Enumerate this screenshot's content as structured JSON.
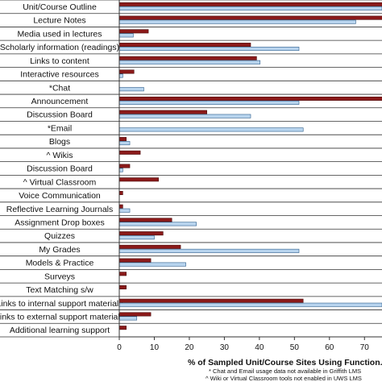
{
  "chart_data": {
    "type": "bar",
    "orientation": "horizontal",
    "categories": [
      "Unit/Course Outline",
      "Lecture Notes",
      "Media used in lectures",
      "Scholarly information  (readings)",
      "Links to content",
      "Interactive resources",
      "*Chat",
      "Announcement",
      "Discussion Board",
      "*Email",
      "Blogs",
      "^ Wikis",
      "Discussion Board",
      "^ Virtual Classroom",
      "Voice Communication",
      "Reflective Learning Journals",
      "Assignment Drop boxes",
      "Quizzes",
      "My Grades",
      "Models & Practice",
      "Surveys",
      "Text Matching s/w",
      "Links to internal support materials",
      "Links to external support materials",
      "Additional learning support"
    ],
    "series": [
      {
        "color": "#8b1a1a",
        "values": [
          76,
          76,
          8.3,
          37.5,
          39.2,
          4.2,
          0,
          76,
          25,
          0,
          2,
          6,
          3,
          11.2,
          1,
          1,
          15,
          12.5,
          17.5,
          9,
          2,
          2,
          52.5,
          9,
          2
        ]
      },
      {
        "color": "#b8d4ee",
        "values": [
          75,
          67.5,
          4,
          51.3,
          40.2,
          1,
          7,
          51.3,
          37.5,
          52.5,
          3,
          0,
          1,
          0,
          0,
          3,
          22,
          10,
          51.3,
          19,
          0,
          0,
          75,
          5,
          0
        ]
      }
    ],
    "xlim": [
      0,
      75
    ],
    "xticks": [
      "0",
      "10",
      "20",
      "30",
      "40",
      "50",
      "60",
      "70"
    ],
    "xlabel": "% of Sampled Unit/Course Sites Using Function.",
    "annotations": [
      "* Chat and Email usage data not available in Griffith LMS",
      "^ Wiki or Virtual Classroom tools not enabled in UWS LMS"
    ],
    "grid": false,
    "legend": "none"
  }
}
